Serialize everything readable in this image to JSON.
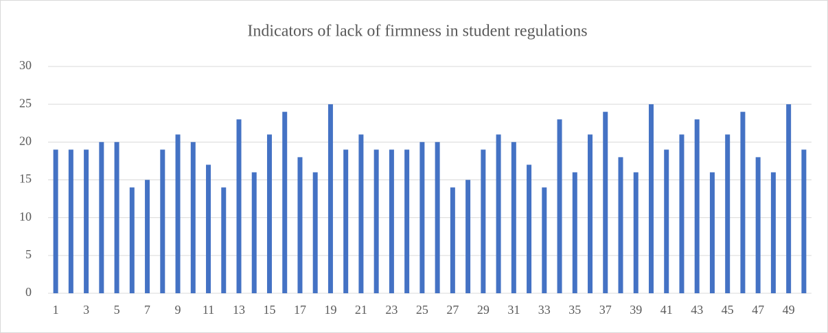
{
  "chart_data": {
    "type": "bar",
    "title": "Indicators of lack of firmness in student regulations",
    "categories": [
      "1",
      null,
      "3",
      null,
      "5",
      null,
      "7",
      null,
      "9",
      null,
      "11",
      null,
      "13",
      null,
      "15",
      null,
      "17",
      null,
      "19",
      null,
      "21",
      null,
      "23",
      null,
      "25",
      null,
      "27",
      null,
      "29",
      null,
      "31",
      null,
      "33",
      null,
      "35",
      null,
      "37",
      null,
      "39",
      null,
      "41",
      null,
      "43",
      null,
      "45",
      null,
      "47",
      null,
      "49",
      null
    ],
    "values": [
      19,
      19,
      19,
      20,
      20,
      14,
      15,
      19,
      21,
      20,
      17,
      14,
      23,
      16,
      21,
      24,
      18,
      16,
      25,
      19,
      21,
      19,
      19,
      19,
      20,
      20,
      14,
      15,
      19,
      21,
      20,
      17,
      14,
      23,
      16,
      21,
      24,
      18,
      16,
      25,
      19,
      21,
      23,
      16,
      21,
      24,
      18,
      16,
      25,
      19
    ],
    "color": "#4472c4",
    "ylim": [
      0,
      30
    ],
    "yticks": [
      0,
      5,
      10,
      15,
      20,
      25,
      30
    ],
    "grid": true
  }
}
